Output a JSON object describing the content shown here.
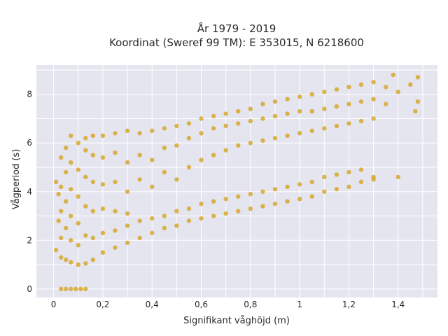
{
  "chart_data": {
    "type": "scatter",
    "title_line1": "År 1979 - 2019",
    "title_line2": "Koordinat (Sweref 99 TM): E 353015, N 6218600",
    "xlabel": "Signifikant våghöjd (m)",
    "ylabel": "Vågperiod (s)",
    "xlim": [
      -0.07,
      1.56
    ],
    "ylim": [
      -0.35,
      9.2
    ],
    "x_ticks": [
      0,
      0.2,
      0.4,
      0.6,
      0.8,
      1,
      1.2,
      1.4
    ],
    "x_tick_labels": [
      "0",
      "0,2",
      "0,4",
      "0,6",
      "0,8",
      "1",
      "1,2",
      "1,4"
    ],
    "y_ticks": [
      0,
      2,
      4,
      6,
      8
    ],
    "y_tick_labels": [
      "0",
      "2",
      "4",
      "6",
      "8"
    ],
    "grid": true,
    "marker_color": "#d4a420",
    "plot_background": "#e5e5f0",
    "series": [
      {
        "values": [
          {
            "x": 0.03,
            "y": 0
          },
          {
            "x": 0.05,
            "y": 0
          },
          {
            "x": 0.07,
            "y": 0
          },
          {
            "x": 0.09,
            "y": 0
          },
          {
            "x": 0.11,
            "y": 0
          },
          {
            "x": 0.13,
            "y": 0
          },
          {
            "x": 0.01,
            "y": 1.6
          },
          {
            "x": 0.01,
            "y": 4.4
          },
          {
            "x": 0.02,
            "y": 3.9
          },
          {
            "x": 0.02,
            "y": 2.8
          },
          {
            "x": 0.03,
            "y": 1.3
          },
          {
            "x": 0.03,
            "y": 2.1
          },
          {
            "x": 0.03,
            "y": 3.2
          },
          {
            "x": 0.03,
            "y": 4.2
          },
          {
            "x": 0.03,
            "y": 5.4
          },
          {
            "x": 0.05,
            "y": 1.2
          },
          {
            "x": 0.05,
            "y": 2.5
          },
          {
            "x": 0.05,
            "y": 3.6
          },
          {
            "x": 0.05,
            "y": 4.8
          },
          {
            "x": 0.05,
            "y": 5.8
          },
          {
            "x": 0.07,
            "y": 1.1
          },
          {
            "x": 0.07,
            "y": 2.0
          },
          {
            "x": 0.07,
            "y": 3.0
          },
          {
            "x": 0.07,
            "y": 4.1
          },
          {
            "x": 0.07,
            "y": 5.2
          },
          {
            "x": 0.07,
            "y": 6.3
          },
          {
            "x": 0.1,
            "y": 1.0
          },
          {
            "x": 0.1,
            "y": 1.8
          },
          {
            "x": 0.1,
            "y": 2.7
          },
          {
            "x": 0.1,
            "y": 3.8
          },
          {
            "x": 0.1,
            "y": 4.9
          },
          {
            "x": 0.1,
            "y": 6.0
          },
          {
            "x": 0.13,
            "y": 1.05
          },
          {
            "x": 0.13,
            "y": 2.2
          },
          {
            "x": 0.13,
            "y": 3.4
          },
          {
            "x": 0.13,
            "y": 4.6
          },
          {
            "x": 0.13,
            "y": 5.7
          },
          {
            "x": 0.13,
            "y": 6.2
          },
          {
            "x": 0.16,
            "y": 1.2
          },
          {
            "x": 0.16,
            "y": 2.1
          },
          {
            "x": 0.16,
            "y": 3.2
          },
          {
            "x": 0.16,
            "y": 4.4
          },
          {
            "x": 0.16,
            "y": 5.5
          },
          {
            "x": 0.16,
            "y": 6.3
          },
          {
            "x": 0.2,
            "y": 1.5
          },
          {
            "x": 0.2,
            "y": 2.3
          },
          {
            "x": 0.2,
            "y": 3.3
          },
          {
            "x": 0.2,
            "y": 4.3
          },
          {
            "x": 0.2,
            "y": 5.4
          },
          {
            "x": 0.2,
            "y": 6.3
          },
          {
            "x": 0.25,
            "y": 1.7
          },
          {
            "x": 0.25,
            "y": 2.4
          },
          {
            "x": 0.25,
            "y": 3.2
          },
          {
            "x": 0.25,
            "y": 4.4
          },
          {
            "x": 0.25,
            "y": 5.6
          },
          {
            "x": 0.25,
            "y": 6.4
          },
          {
            "x": 0.3,
            "y": 1.9
          },
          {
            "x": 0.3,
            "y": 2.6
          },
          {
            "x": 0.3,
            "y": 3.1
          },
          {
            "x": 0.3,
            "y": 4.0
          },
          {
            "x": 0.3,
            "y": 5.2
          },
          {
            "x": 0.3,
            "y": 6.5
          },
          {
            "x": 0.35,
            "y": 2.1
          },
          {
            "x": 0.35,
            "y": 2.8
          },
          {
            "x": 0.35,
            "y": 4.5
          },
          {
            "x": 0.35,
            "y": 5.5
          },
          {
            "x": 0.35,
            "y": 6.4
          },
          {
            "x": 0.4,
            "y": 2.3
          },
          {
            "x": 0.4,
            "y": 2.9
          },
          {
            "x": 0.4,
            "y": 4.2
          },
          {
            "x": 0.4,
            "y": 5.3
          },
          {
            "x": 0.4,
            "y": 6.5
          },
          {
            "x": 0.45,
            "y": 2.5
          },
          {
            "x": 0.45,
            "y": 3.0
          },
          {
            "x": 0.45,
            "y": 4.8
          },
          {
            "x": 0.45,
            "y": 5.8
          },
          {
            "x": 0.45,
            "y": 6.6
          },
          {
            "x": 0.5,
            "y": 2.6
          },
          {
            "x": 0.5,
            "y": 3.2
          },
          {
            "x": 0.5,
            "y": 4.5
          },
          {
            "x": 0.5,
            "y": 5.9
          },
          {
            "x": 0.5,
            "y": 6.7
          },
          {
            "x": 0.55,
            "y": 2.8
          },
          {
            "x": 0.55,
            "y": 3.3
          },
          {
            "x": 0.55,
            "y": 5.0
          },
          {
            "x": 0.55,
            "y": 6.2
          },
          {
            "x": 0.55,
            "y": 6.8
          },
          {
            "x": 0.6,
            "y": 2.9
          },
          {
            "x": 0.6,
            "y": 3.5
          },
          {
            "x": 0.6,
            "y": 5.3
          },
          {
            "x": 0.6,
            "y": 6.4
          },
          {
            "x": 0.6,
            "y": 7.0
          },
          {
            "x": 0.65,
            "y": 3.0
          },
          {
            "x": 0.65,
            "y": 3.6
          },
          {
            "x": 0.65,
            "y": 5.5
          },
          {
            "x": 0.65,
            "y": 6.6
          },
          {
            "x": 0.65,
            "y": 7.1
          },
          {
            "x": 0.7,
            "y": 3.1
          },
          {
            "x": 0.7,
            "y": 3.7
          },
          {
            "x": 0.7,
            "y": 5.7
          },
          {
            "x": 0.7,
            "y": 6.7
          },
          {
            "x": 0.7,
            "y": 7.2
          },
          {
            "x": 0.75,
            "y": 3.2
          },
          {
            "x": 0.75,
            "y": 3.8
          },
          {
            "x": 0.75,
            "y": 5.9
          },
          {
            "x": 0.75,
            "y": 6.8
          },
          {
            "x": 0.75,
            "y": 7.3
          },
          {
            "x": 0.8,
            "y": 3.3
          },
          {
            "x": 0.8,
            "y": 3.9
          },
          {
            "x": 0.8,
            "y": 6.0
          },
          {
            "x": 0.8,
            "y": 6.9
          },
          {
            "x": 0.8,
            "y": 7.4
          },
          {
            "x": 0.85,
            "y": 3.4
          },
          {
            "x": 0.85,
            "y": 4.0
          },
          {
            "x": 0.85,
            "y": 6.1
          },
          {
            "x": 0.85,
            "y": 7.0
          },
          {
            "x": 0.85,
            "y": 7.6
          },
          {
            "x": 0.9,
            "y": 3.5
          },
          {
            "x": 0.9,
            "y": 4.1
          },
          {
            "x": 0.9,
            "y": 6.2
          },
          {
            "x": 0.9,
            "y": 7.1
          },
          {
            "x": 0.9,
            "y": 7.7
          },
          {
            "x": 0.95,
            "y": 3.6
          },
          {
            "x": 0.95,
            "y": 4.2
          },
          {
            "x": 0.95,
            "y": 6.3
          },
          {
            "x": 0.95,
            "y": 7.2
          },
          {
            "x": 0.95,
            "y": 7.8
          },
          {
            "x": 1.0,
            "y": 3.7
          },
          {
            "x": 1.0,
            "y": 4.3
          },
          {
            "x": 1.0,
            "y": 6.4
          },
          {
            "x": 1.0,
            "y": 7.3
          },
          {
            "x": 1.0,
            "y": 7.9
          },
          {
            "x": 1.05,
            "y": 3.8
          },
          {
            "x": 1.05,
            "y": 4.4
          },
          {
            "x": 1.05,
            "y": 6.5
          },
          {
            "x": 1.05,
            "y": 7.3
          },
          {
            "x": 1.05,
            "y": 8.0
          },
          {
            "x": 1.1,
            "y": 4.0
          },
          {
            "x": 1.1,
            "y": 4.6
          },
          {
            "x": 1.1,
            "y": 6.6
          },
          {
            "x": 1.1,
            "y": 7.4
          },
          {
            "x": 1.1,
            "y": 8.1
          },
          {
            "x": 1.15,
            "y": 4.1
          },
          {
            "x": 1.15,
            "y": 4.7
          },
          {
            "x": 1.15,
            "y": 6.7
          },
          {
            "x": 1.15,
            "y": 7.5
          },
          {
            "x": 1.15,
            "y": 8.2
          },
          {
            "x": 1.2,
            "y": 4.2
          },
          {
            "x": 1.2,
            "y": 4.8
          },
          {
            "x": 1.2,
            "y": 6.8
          },
          {
            "x": 1.2,
            "y": 7.6
          },
          {
            "x": 1.2,
            "y": 8.3
          },
          {
            "x": 1.25,
            "y": 4.4
          },
          {
            "x": 1.25,
            "y": 4.9
          },
          {
            "x": 1.25,
            "y": 6.9
          },
          {
            "x": 1.25,
            "y": 7.7
          },
          {
            "x": 1.25,
            "y": 8.4
          },
          {
            "x": 1.3,
            "y": 4.5
          },
          {
            "x": 1.3,
            "y": 4.6
          },
          {
            "x": 1.3,
            "y": 7.0
          },
          {
            "x": 1.3,
            "y": 7.8
          },
          {
            "x": 1.3,
            "y": 8.5
          },
          {
            "x": 1.35,
            "y": 7.6
          },
          {
            "x": 1.35,
            "y": 8.3
          },
          {
            "x": 1.38,
            "y": 8.8
          },
          {
            "x": 1.4,
            "y": 4.6
          },
          {
            "x": 1.4,
            "y": 8.1
          },
          {
            "x": 1.45,
            "y": 8.4
          },
          {
            "x": 1.47,
            "y": 7.3
          },
          {
            "x": 1.48,
            "y": 8.7
          },
          {
            "x": 1.48,
            "y": 7.7
          }
        ]
      }
    ]
  }
}
